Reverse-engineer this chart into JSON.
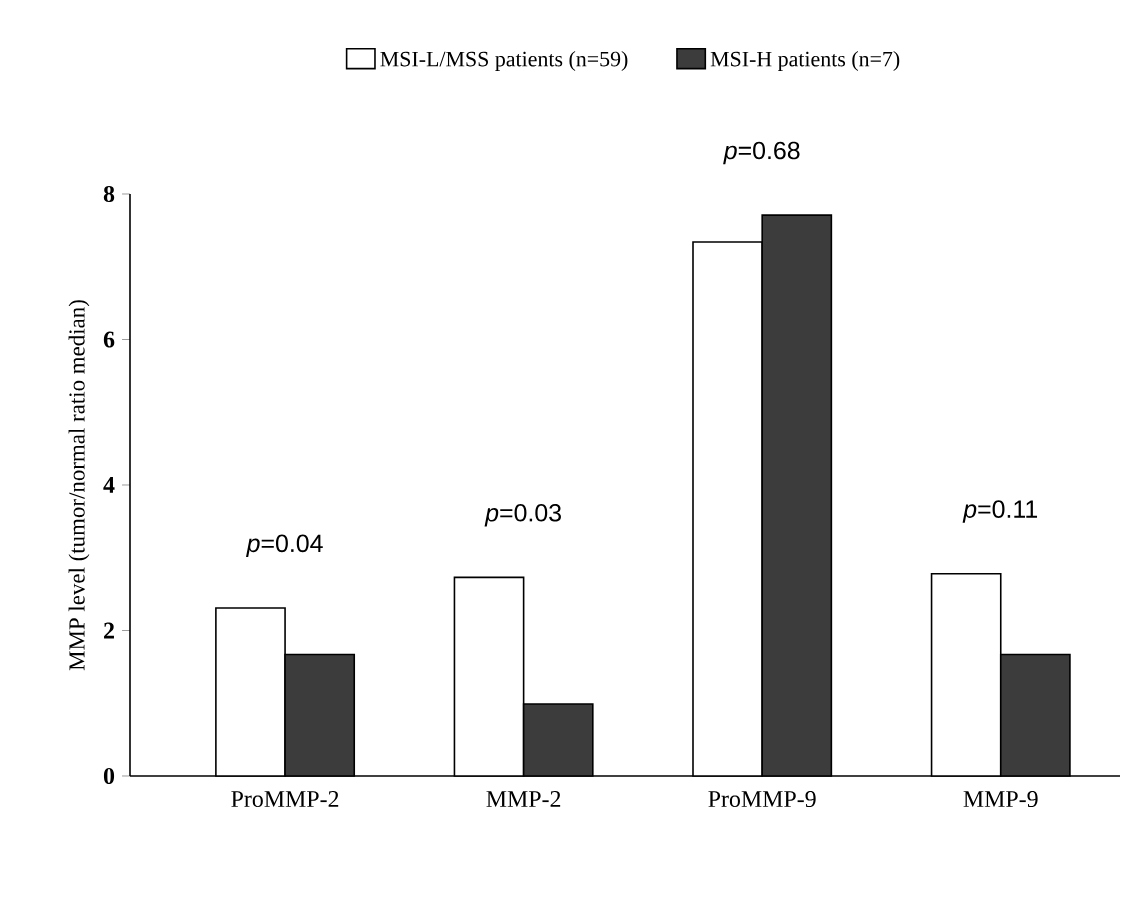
{
  "chart_data": {
    "type": "bar",
    "ylabel": "MMP level (tumor/normal ratio median)",
    "categories": [
      "ProMMP-2",
      "MMP-2",
      "ProMMP-9",
      "MMP-9"
    ],
    "series": [
      {
        "name": "MSI-L/MSS patients (n=59)",
        "color": "#ffffff",
        "values": [
          2.31,
          2.73,
          7.34,
          2.78
        ]
      },
      {
        "name": "MSI-H patients (n=7)",
        "color": "#3c3c3c",
        "values": [
          1.67,
          0.99,
          7.71,
          1.67
        ]
      }
    ],
    "annotations": [
      "*p*=0.04",
      "*p*=0.03",
      "*p*=0.68",
      "*p*=0.11"
    ],
    "ylim": [
      0,
      8
    ],
    "yticks": [
      0,
      2,
      4,
      6,
      8
    ],
    "grid": false,
    "legend": "top"
  }
}
